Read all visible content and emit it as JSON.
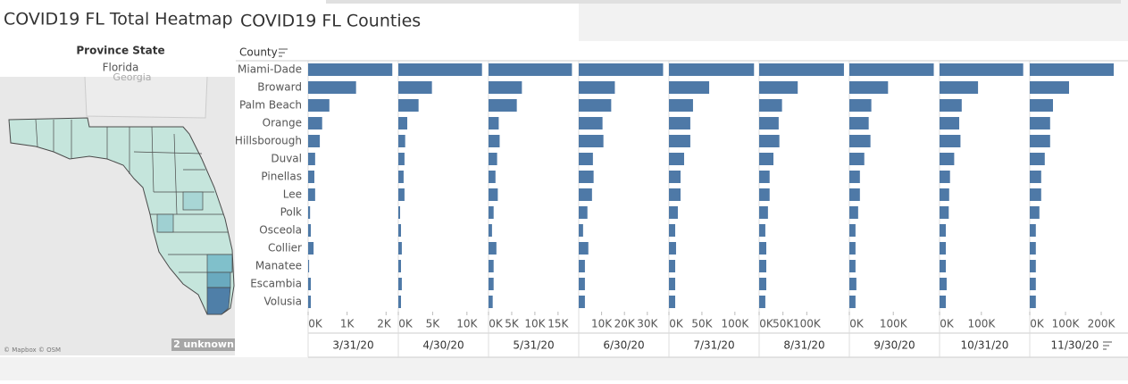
{
  "map": {
    "title": "COVID19 FL Total Heatmap",
    "legend_title": "Province State",
    "legend_value": "Florida",
    "neighbor_label": "Georgia",
    "attribution": "© Mapbox © OSM",
    "unknown_badge": "2 unknown"
  },
  "chart_data": {
    "type": "bar",
    "orientation": "horizontal",
    "title": "COVID19 FL Counties",
    "y_axis_label": "County",
    "color": "#4e79a7",
    "categories": [
      "Miami-Dade",
      "Broward",
      "Palm Beach",
      "Orange",
      "Hillsborough",
      "Duval",
      "Pinellas",
      "Lee",
      "Polk",
      "Osceola",
      "Collier",
      "Manatee",
      "Escambia",
      "Volusia"
    ],
    "panels": [
      {
        "date": "3/31/20",
        "xlim": [
          0,
          2200
        ],
        "xticks": [
          {
            "value": 0,
            "label": "0K"
          },
          {
            "value": 1000,
            "label": "1K"
          },
          {
            "value": 2000,
            "label": "2K"
          }
        ],
        "values": [
          2160,
          1230,
          545,
          360,
          300,
          180,
          160,
          180,
          50,
          70,
          140,
          25,
          70,
          70
        ]
      },
      {
        "date": "4/30/20",
        "xlim": [
          0,
          12500
        ],
        "xticks": [
          {
            "value": 0,
            "label": "0K"
          },
          {
            "value": 5000,
            "label": "5K"
          },
          {
            "value": 10000,
            "label": "10K"
          }
        ],
        "values": [
          12200,
          4900,
          2950,
          1300,
          1000,
          900,
          770,
          900,
          260,
          390,
          510,
          390,
          510,
          390
        ]
      },
      {
        "date": "5/31/20",
        "xlim": [
          0,
          18500
        ],
        "xticks": [
          {
            "value": 0,
            "label": "0K"
          },
          {
            "value": 5000,
            "label": "5K"
          },
          {
            "value": 10000,
            "label": "10K"
          },
          {
            "value": 15000,
            "label": "15K"
          }
        ],
        "values": [
          18000,
          7200,
          6100,
          2200,
          2400,
          1850,
          1500,
          2000,
          1100,
          750,
          1700,
          1100,
          1100,
          900
        ]
      },
      {
        "date": "6/30/20",
        "xlim": [
          0,
          37500
        ],
        "xticks": [
          {
            "value": 10000,
            "label": "10K"
          },
          {
            "value": 20000,
            "label": "20K"
          },
          {
            "value": 30000,
            "label": "30K"
          }
        ],
        "values": [
          36900,
          15800,
          14200,
          10400,
          10800,
          6200,
          6500,
          5800,
          3800,
          1900,
          4200,
          2700,
          2700,
          2700
        ]
      },
      {
        "date": "7/31/20",
        "xlim": [
          0,
          130000
        ],
        "xticks": [
          {
            "value": 0,
            "label": "0K"
          },
          {
            "value": 50000,
            "label": "50K"
          },
          {
            "value": 100000,
            "label": "100K"
          }
        ],
        "values": [
          129000,
          61000,
          36500,
          32400,
          32400,
          23000,
          17600,
          17600,
          13500,
          9500,
          10800,
          9500,
          9500,
          9500
        ]
      },
      {
        "date": "8/31/20",
        "xlim": [
          0,
          180000
        ],
        "xticks": [
          {
            "value": 0,
            "label": "0K"
          },
          {
            "value": 50000,
            "label": "50K"
          },
          {
            "value": 100000,
            "label": "100K"
          }
        ],
        "values": [
          178000,
          81000,
          48000,
          41000,
          42500,
          30000,
          22000,
          22000,
          18500,
          13000,
          15000,
          15000,
          15000,
          13000
        ]
      },
      {
        "date": "9/30/20",
        "xlim": [
          0,
          195000
        ],
        "xticks": [
          {
            "value": 0,
            "label": "0K"
          },
          {
            "value": 100000,
            "label": "100K"
          }
        ],
        "values": [
          192000,
          88000,
          50000,
          44000,
          48000,
          34000,
          24000,
          24000,
          20000,
          14000,
          14000,
          14000,
          16000,
          14000
        ]
      },
      {
        "date": "10/31/20",
        "xlim": [
          0,
          205000
        ],
        "xticks": [
          {
            "value": 0,
            "label": "0K"
          },
          {
            "value": 100000,
            "label": "100K"
          }
        ],
        "values": [
          200000,
          92000,
          53000,
          47000,
          50000,
          35000,
          25000,
          23000,
          22000,
          15000,
          15000,
          15000,
          17000,
          15000
        ]
      },
      {
        "date": "11/30/20",
        "xlim": [
          0,
          240000
        ],
        "xticks": [
          {
            "value": 0,
            "label": "0K"
          },
          {
            "value": 100000,
            "label": "100K"
          },
          {
            "value": 200000,
            "label": "200K"
          }
        ],
        "values": [
          235000,
          110000,
          65000,
          57000,
          57000,
          42000,
          32000,
          32000,
          27000,
          17000,
          17000,
          17000,
          17000,
          17000
        ]
      }
    ]
  }
}
